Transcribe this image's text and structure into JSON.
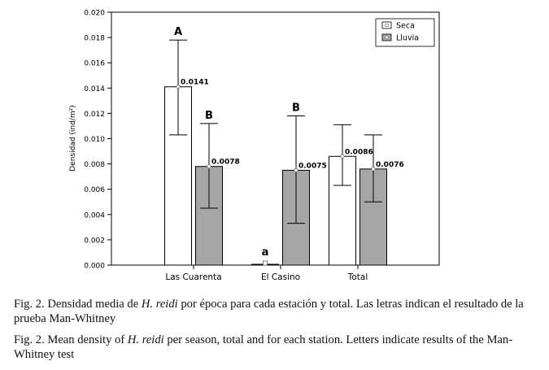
{
  "chart_data": {
    "type": "bar",
    "title": "",
    "xlabel": "",
    "ylabel": "Densidad (ind/m²)",
    "ylim": [
      0,
      0.02
    ],
    "yticks": [
      "0.000",
      "0.002",
      "0.004",
      "0.006",
      "0.008",
      "0.010",
      "0.012",
      "0.014",
      "0.016",
      "0.018",
      "0.020"
    ],
    "categories": [
      "Las Cuarenta",
      "El Casino",
      "Total"
    ],
    "legend_position": "top-right",
    "series": [
      {
        "name": "Seca",
        "color": "#ffffff",
        "values": [
          0.0141,
          0.0,
          0.0086
        ],
        "err_low": [
          0.0103,
          0.0,
          0.0063
        ],
        "err_high": [
          0.0178,
          0.0,
          0.0111
        ],
        "value_labels": [
          "0.0141",
          "",
          "0.0086"
        ],
        "letters": [
          "A",
          "a",
          ""
        ]
      },
      {
        "name": "Lluvia",
        "color": "#a6a6a6",
        "values": [
          0.0078,
          0.0075,
          0.0076
        ],
        "err_low": [
          0.0045,
          0.0033,
          0.005
        ],
        "err_high": [
          0.0112,
          0.0118,
          0.0103
        ],
        "value_labels": [
          "0.0078",
          "0.0075",
          "0.0076"
        ],
        "letters": [
          "B",
          "B",
          ""
        ]
      }
    ]
  },
  "caption": {
    "es": {
      "prefix": "Fig. 2. Densidad media de ",
      "species": "H. reidi",
      "suffix": " por época para cada estación y total. Las letras indican el resultado de la prueba Man-Whitney"
    },
    "en": {
      "prefix": "Fig. 2. Mean density of ",
      "species": "H. reidi",
      "suffix": " per season, total and for each station. Letters indicate results of the Man-Whitney test"
    }
  }
}
